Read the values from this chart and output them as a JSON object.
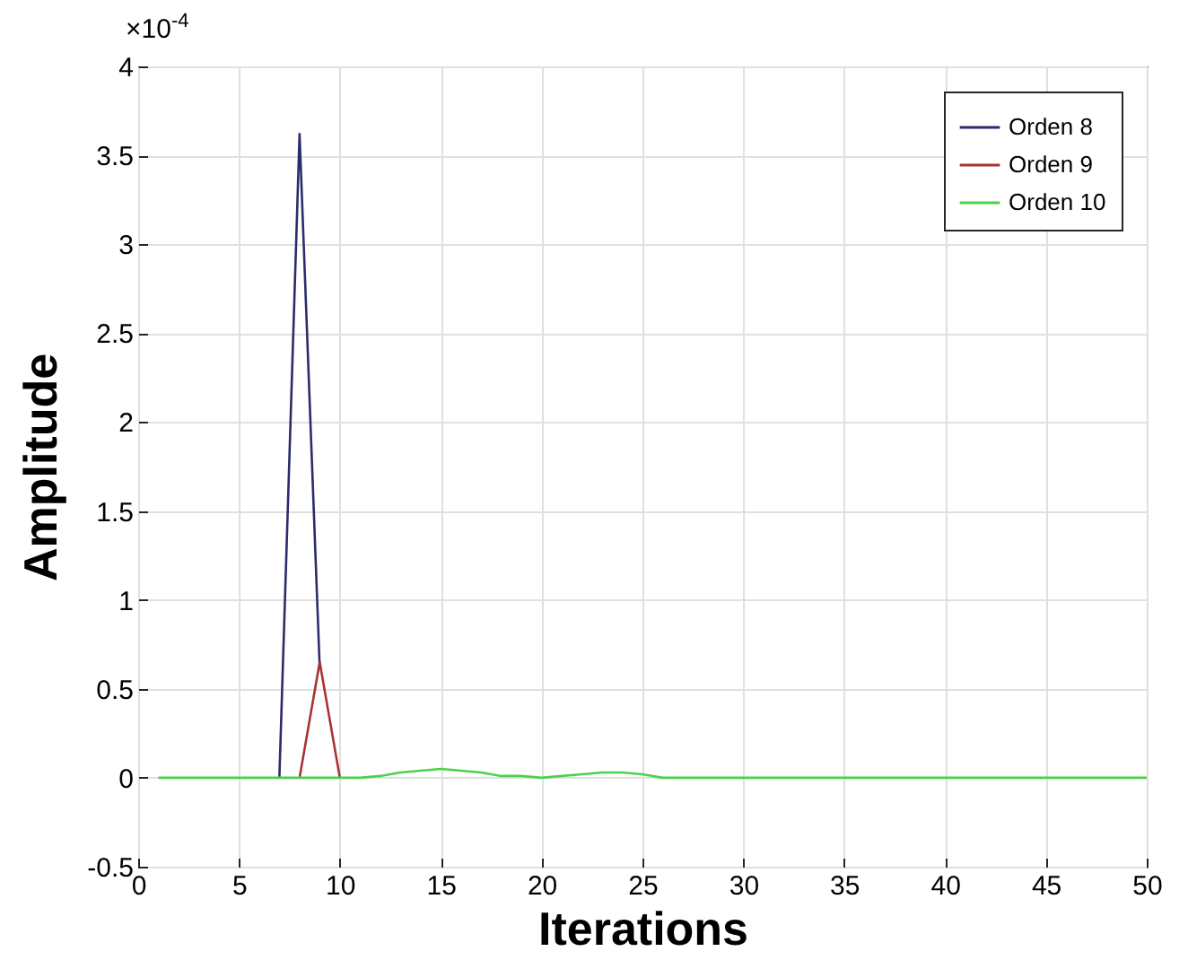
{
  "chart_data": {
    "type": "line",
    "xlabel": "Iterations",
    "ylabel": "Amplitude",
    "annotations": [
      "×10$^{-4}$"
    ],
    "x": [
      1,
      2,
      3,
      4,
      5,
      6,
      7,
      8,
      9,
      10,
      11,
      12,
      13,
      14,
      15,
      16,
      17,
      18,
      19,
      20,
      21,
      22,
      23,
      24,
      25,
      26,
      27,
      28,
      29,
      30,
      31,
      32,
      33,
      34,
      35,
      36,
      37,
      38,
      39,
      40,
      41,
      42,
      43,
      44,
      45,
      46,
      47,
      48,
      49,
      50
    ],
    "series": [
      {
        "name": "Orden 8",
        "color": "#2b2d6b",
        "values": [
          null,
          null,
          null,
          null,
          null,
          null,
          0,
          3.62,
          0.62,
          null,
          null,
          null,
          null,
          null,
          null,
          null,
          null,
          null,
          null,
          null,
          null,
          null,
          null,
          null,
          null,
          null,
          null,
          null,
          null,
          null,
          null,
          null,
          null,
          null,
          null,
          null,
          null,
          null,
          null,
          null,
          null,
          null,
          null,
          null,
          null,
          null,
          null,
          null,
          null,
          null
        ]
      },
      {
        "name": "Orden 9",
        "color": "#a83232",
        "values": [
          null,
          null,
          null,
          null,
          null,
          null,
          null,
          0,
          0.65,
          0,
          null,
          null,
          null,
          null,
          null,
          null,
          null,
          null,
          null,
          null,
          null,
          null,
          null,
          null,
          null,
          null,
          null,
          null,
          null,
          null,
          null,
          null,
          null,
          null,
          null,
          null,
          null,
          null,
          null,
          null,
          null,
          null,
          null,
          null,
          null,
          null,
          null,
          null,
          null,
          null
        ]
      },
      {
        "name": "Orden 10",
        "color": "#4cd14c",
        "values": [
          0,
          0,
          0,
          0,
          0,
          0,
          0,
          0,
          0,
          0,
          0,
          0.01,
          0.03,
          0.04,
          0.05,
          0.04,
          0.03,
          0.01,
          0.01,
          0,
          0.01,
          0.02,
          0.03,
          0.03,
          0.02,
          0,
          0,
          0,
          0,
          0,
          0,
          0,
          0,
          0,
          0,
          0,
          0,
          0,
          0,
          0,
          0,
          0,
          0,
          0,
          0,
          0,
          0,
          0,
          0,
          0
        ]
      }
    ],
    "xlim": [
      0,
      50
    ],
    "xticks": [
      0,
      5,
      10,
      15,
      20,
      25,
      30,
      35,
      40,
      45,
      50
    ],
    "ylim": [
      -0.5,
      4
    ],
    "yticks": [
      -0.5,
      0,
      0.5,
      1,
      1.5,
      2,
      2.5,
      3,
      3.5,
      4
    ],
    "grid": true,
    "legend": "top right",
    "marker": "none",
    "line_style": "solid"
  }
}
